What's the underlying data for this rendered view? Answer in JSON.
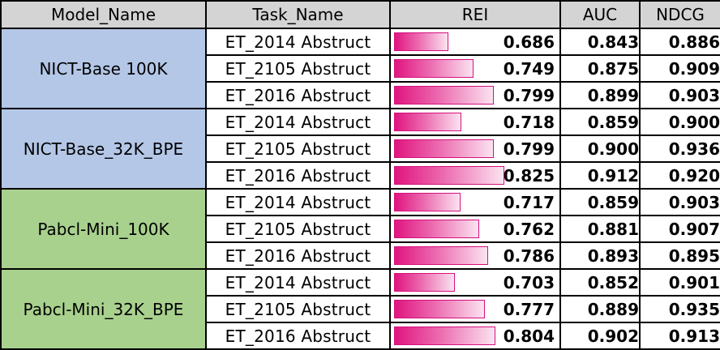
{
  "headers": [
    "Model_Name",
    "Task_Name",
    "REI",
    "AUC",
    "NDCG"
  ],
  "colors": {
    "header_bg": "#d4d4d4",
    "group_blue": "#b4c7e7",
    "group_green": "#a9d18e",
    "bar": "#e0157f"
  },
  "chart_data": {
    "type": "table",
    "columns": [
      "Model_Name",
      "Task_Name",
      "REI",
      "AUC",
      "NDCG"
    ],
    "bar_column": "REI",
    "groups": [
      {
        "model": "NICT-Base 100K",
        "color": "#b4c7e7",
        "rows": [
          {
            "task": "ET_2014  Abstruct",
            "rei": "0.686",
            "auc": "0.843",
            "ndcg": "0.886"
          },
          {
            "task": "ET_2105  Abstruct",
            "rei": "0.749",
            "auc": "0.875",
            "ndcg": "0.909"
          },
          {
            "task": "ET_2016  Abstruct",
            "rei": "0.799",
            "auc": "0.899",
            "ndcg": "0.903"
          }
        ]
      },
      {
        "model": "NICT-Base_32K_BPE",
        "color": "#b4c7e7",
        "rows": [
          {
            "task": "ET_2014  Abstruct",
            "rei": "0.718",
            "auc": "0.859",
            "ndcg": "0.900"
          },
          {
            "task": "ET_2105  Abstruct",
            "rei": "0.799",
            "auc": "0.900",
            "ndcg": "0.936"
          },
          {
            "task": "ET_2016  Abstruct",
            "rei": "0.825",
            "auc": "0.912",
            "ndcg": "0.920"
          }
        ]
      },
      {
        "model": "Pabcl-Mini_100K",
        "color": "#a9d18e",
        "rows": [
          {
            "task": "ET_2014  Abstruct",
            "rei": "0.717",
            "auc": "0.859",
            "ndcg": "0.903"
          },
          {
            "task": "ET_2105  Abstruct",
            "rei": "0.762",
            "auc": "0.881",
            "ndcg": "0.907"
          },
          {
            "task": "ET_2016  Abstruct",
            "rei": "0.786",
            "auc": "0.893",
            "ndcg": "0.895"
          }
        ]
      },
      {
        "model": "Pabcl-Mini_32K_BPE",
        "color": "#a9d18e",
        "rows": [
          {
            "task": "ET_2014  Abstruct",
            "rei": "0.703",
            "auc": "0.852",
            "ndcg": "0.901"
          },
          {
            "task": "ET_2105  Abstruct",
            "rei": "0.777",
            "auc": "0.889",
            "ndcg": "0.935"
          },
          {
            "task": "ET_2016  Abstruct",
            "rei": "0.804",
            "auc": "0.902",
            "ndcg": "0.913"
          }
        ]
      }
    ]
  }
}
